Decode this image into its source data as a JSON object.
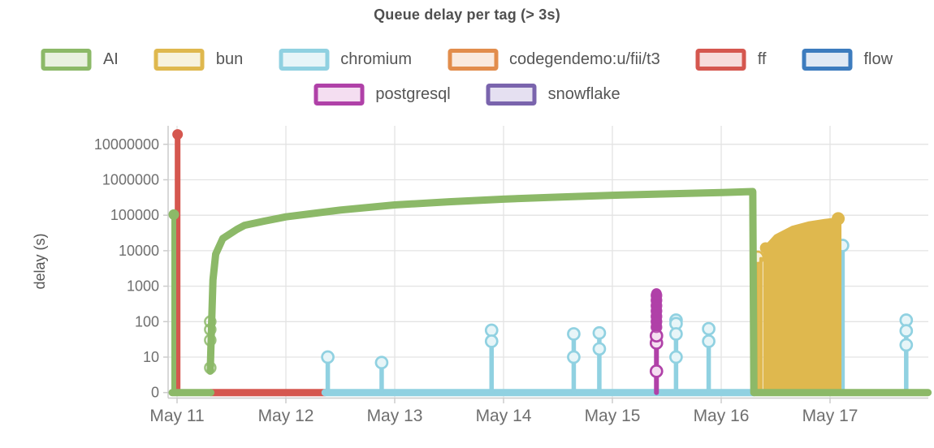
{
  "chart_data": {
    "type": "line",
    "title": "Queue delay per tag (> 3s)",
    "ylabel": "delay (s)",
    "yscale": "symlog",
    "grid": true,
    "legend_position": "top",
    "grid_color": "#e3e3e3",
    "axis_color": "#cccccc",
    "ylim": [
      0,
      20000000
    ],
    "x_range_days": [
      10.92,
      17.92
    ],
    "yticks": [
      0,
      10,
      100,
      1000,
      10000,
      100000,
      1000000,
      10000000
    ],
    "ytick_labels": [
      "0",
      "10",
      "100",
      "1000",
      "10000",
      "100000",
      "1000000",
      "10000000"
    ],
    "xtick_labels": [
      "May 11",
      "May 12",
      "May 13",
      "May 14",
      "May 15",
      "May 16",
      "May 17"
    ],
    "series": [
      {
        "name": "AI",
        "color": "#8cb968",
        "tint": "#e9f1e0",
        "z": 5,
        "baselines": [
          [
            10.955,
            11.31
          ],
          [
            16.305,
            17.9
          ]
        ],
        "spikes": [
          {
            "x": 10.97,
            "stem_width": 6,
            "top": 110000,
            "cap": true,
            "values": []
          }
        ],
        "curves": [
          {
            "width": 9,
            "points": [
              [
                11.305,
                4
              ],
              [
                11.315,
                50
              ],
              [
                11.33,
                1500
              ],
              [
                11.355,
                8000
              ],
              [
                11.42,
                22000
              ],
              [
                11.55,
                40000
              ],
              [
                11.62,
                52000
              ],
              [
                11.8,
                68000
              ],
              [
                12.0,
                90000
              ],
              [
                12.5,
                140000
              ],
              [
                13.0,
                195000
              ],
              [
                13.5,
                240000
              ],
              [
                14.0,
                285000
              ],
              [
                14.5,
                325000
              ],
              [
                15.0,
                365000
              ],
              [
                15.5,
                400000
              ],
              [
                16.0,
                435000
              ],
              [
                16.29,
                465000
              ],
              [
                16.3,
                0
              ]
            ]
          }
        ],
        "ring_markers": [
          {
            "x": 11.305,
            "values": [
              5,
              30,
              60,
              100
            ],
            "r": 6.5
          }
        ]
      },
      {
        "name": "bun",
        "color": "#dfb84e",
        "tint": "#f7f2dd",
        "z": 4,
        "spikes": [
          {
            "x": 16.335,
            "stem_width": 4,
            "top": 6500,
            "cap": false,
            "values": [
              6500
            ]
          },
          {
            "x": 16.365,
            "stem_width": 4,
            "top": 6000,
            "cap": false,
            "values": []
          }
        ],
        "areas": [
          {
            "top": [
              [
                16.4,
                12000
              ],
              [
                16.5,
                26000
              ],
              [
                16.65,
                45000
              ],
              [
                16.8,
                60000
              ],
              [
                16.95,
                71000
              ],
              [
                17.09,
                80000
              ]
            ]
          }
        ],
        "caps": [
          {
            "x": 16.408,
            "v": 12000,
            "r": 7
          },
          {
            "x": 17.075,
            "v": 80000,
            "r": 8
          }
        ]
      },
      {
        "name": "chromium",
        "color": "#90d1e1",
        "tint": "#e7f5f8",
        "z": 2,
        "baselines": [
          [
            12.36,
            16.3
          ]
        ],
        "spikes": [
          {
            "x": 12.385,
            "values": [
              10
            ]
          },
          {
            "x": 12.88,
            "values": [
              7
            ]
          },
          {
            "x": 13.89,
            "values": [
              57,
              28
            ]
          },
          {
            "x": 14.645,
            "values": [
              45,
              10
            ]
          },
          {
            "x": 14.88,
            "values": [
              48,
              17
            ]
          },
          {
            "x": 15.585,
            "values": [
              110,
              88,
              45,
              10
            ]
          },
          {
            "x": 15.885,
            "values": [
              63,
              28
            ]
          },
          {
            "x": 17.115,
            "values": [
              14000
            ]
          },
          {
            "x": 17.7,
            "values": [
              110,
              55,
              22
            ]
          }
        ]
      },
      {
        "name": "codegendemo:u/fii/t3",
        "color": "#e28d4c",
        "tint": "#faeade",
        "z": 0
      },
      {
        "name": "ff",
        "color": "#d5574f",
        "tint": "#f7dcdb",
        "z": 1,
        "baselines": [
          [
            11.31,
            12.36
          ]
        ],
        "spikes": [
          {
            "x": 11.005,
            "stem_width": 7,
            "top": 20000000,
            "cap": true,
            "values": []
          }
        ]
      },
      {
        "name": "flow",
        "color": "#3d7cbe",
        "tint": "#e0e9f4",
        "z": 0
      },
      {
        "name": "postgresql",
        "color": "#b041a8",
        "tint": "#f4def1",
        "z": 3,
        "spikes": [
          {
            "x": 15.405,
            "stem_width": 6,
            "values": [
              4,
              25,
              40
            ]
          }
        ],
        "bars": [
          {
            "x": 15.405,
            "v0": 70,
            "v1": 620,
            "width": 13
          }
        ],
        "ring_markers": [
          {
            "x": 15.405,
            "values": [
              70,
              100,
              140,
              200,
              280,
              400,
              550
            ],
            "r": 6
          }
        ]
      },
      {
        "name": "snowflake",
        "color": "#7a64ad",
        "tint": "#e5e0f1",
        "z": 0
      }
    ]
  }
}
